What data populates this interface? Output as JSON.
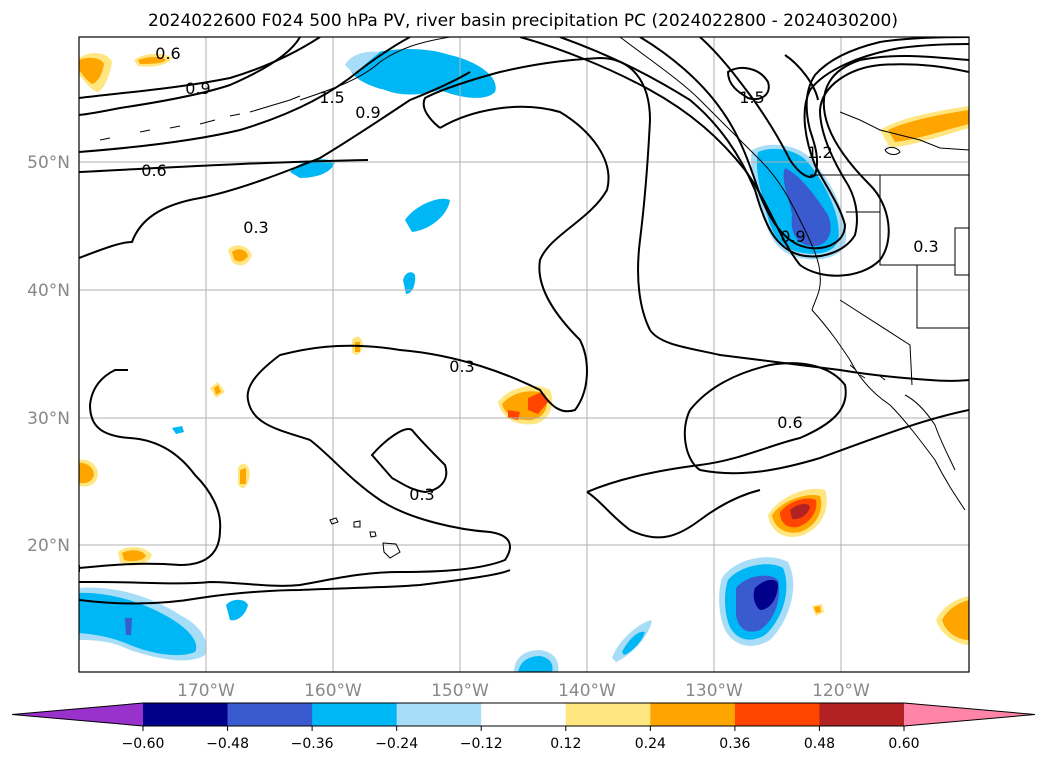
{
  "title": "2024022600 F024 500 hPa PV, river basin precipitation PC (2024022800 - 2024030200)",
  "lat_labels": [
    "50°N",
    "40°N",
    "30°N",
    "20°N"
  ],
  "lon_labels": [
    "170°W",
    "160°W",
    "150°W",
    "140°W",
    "130°W",
    "120°W"
  ],
  "contour_labels": [
    "0.6",
    "0.9",
    "1.5",
    "0.9",
    "0.6",
    "0.3",
    "0.3",
    "0.3",
    "1.5",
    "1.2",
    "0.9",
    "0.3",
    "0.6"
  ],
  "colorbar": {
    "colors": [
      "#9932cc",
      "#00008b",
      "#3a5bd0",
      "#00b7f5",
      "#a8ddf7",
      "#ffffff",
      "#ffe680",
      "#ffa500",
      "#ff4500",
      "#b22222",
      "#ff85a8"
    ],
    "ticks": [
      "−0.60",
      "−0.48",
      "−0.36",
      "−0.24",
      "−0.12",
      "0.12",
      "0.24",
      "0.36",
      "0.48",
      "0.60"
    ]
  }
}
